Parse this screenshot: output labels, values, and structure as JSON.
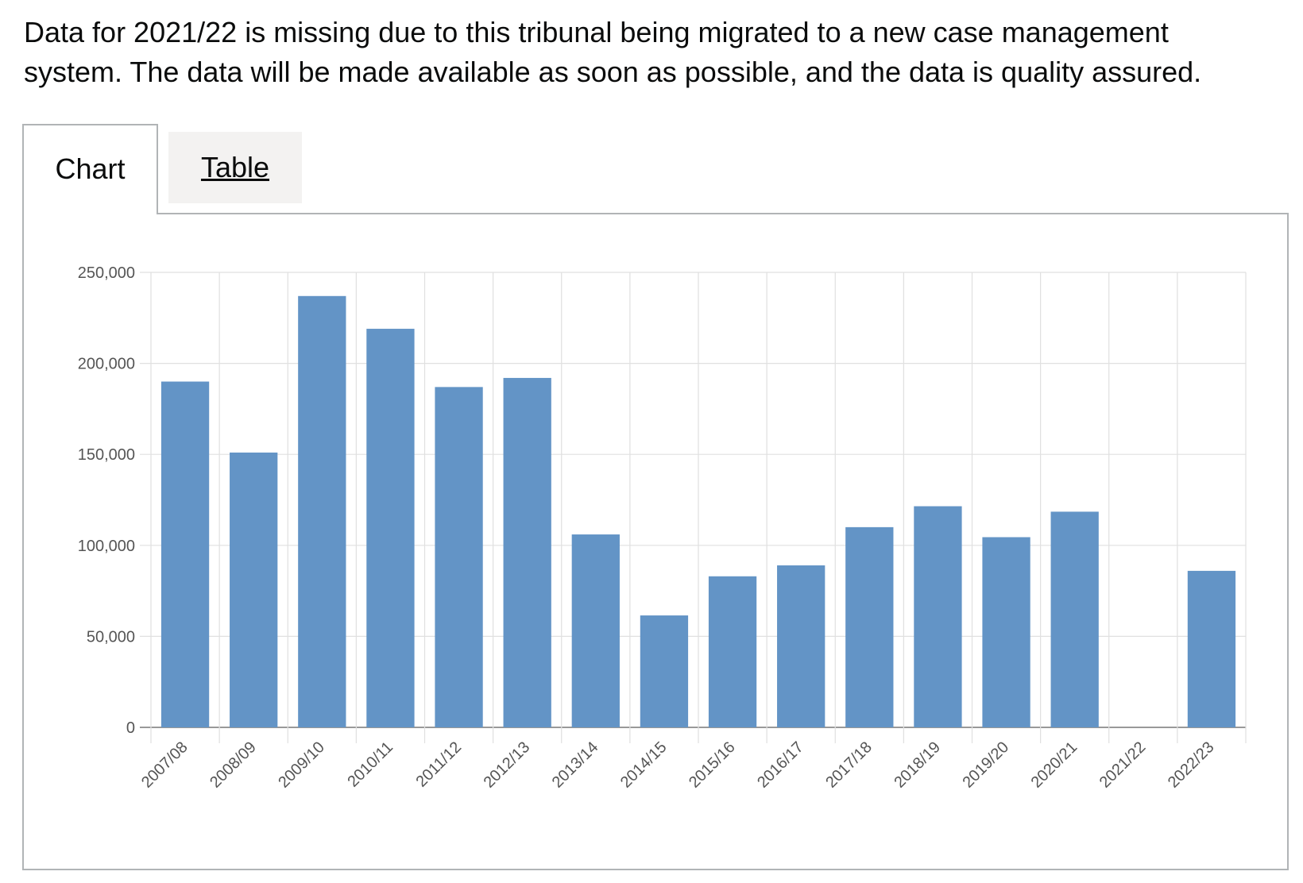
{
  "notice": "Data for 2021/22 is missing due to this tribunal being migrated to a new case management system. The data will be made available as soon as possible, and the data is quality assured.",
  "tabs": {
    "chart_label": "Chart",
    "table_label": "Table"
  },
  "colors": {
    "bar": "#6394c6",
    "grid": "#e0e0e0",
    "axis": "#999999"
  },
  "chart_data": {
    "type": "bar",
    "title": "",
    "xlabel": "",
    "ylabel": "",
    "ylim": [
      0,
      250000
    ],
    "yticks": [
      0,
      50000,
      100000,
      150000,
      200000,
      250000
    ],
    "ytick_labels": [
      "0",
      "50,000",
      "100,000",
      "150,000",
      "200,000",
      "250,000"
    ],
    "categories": [
      "2007/08",
      "2008/09",
      "2009/10",
      "2010/11",
      "2011/12",
      "2012/13",
      "2013/14",
      "2014/15",
      "2015/16",
      "2016/17",
      "2017/18",
      "2018/19",
      "2019/20",
      "2020/21",
      "2021/22",
      "2022/23"
    ],
    "values": [
      190000,
      151000,
      237000,
      219000,
      187000,
      192000,
      106000,
      61500,
      83000,
      89000,
      110000,
      121500,
      104500,
      118500,
      null,
      86000
    ]
  }
}
